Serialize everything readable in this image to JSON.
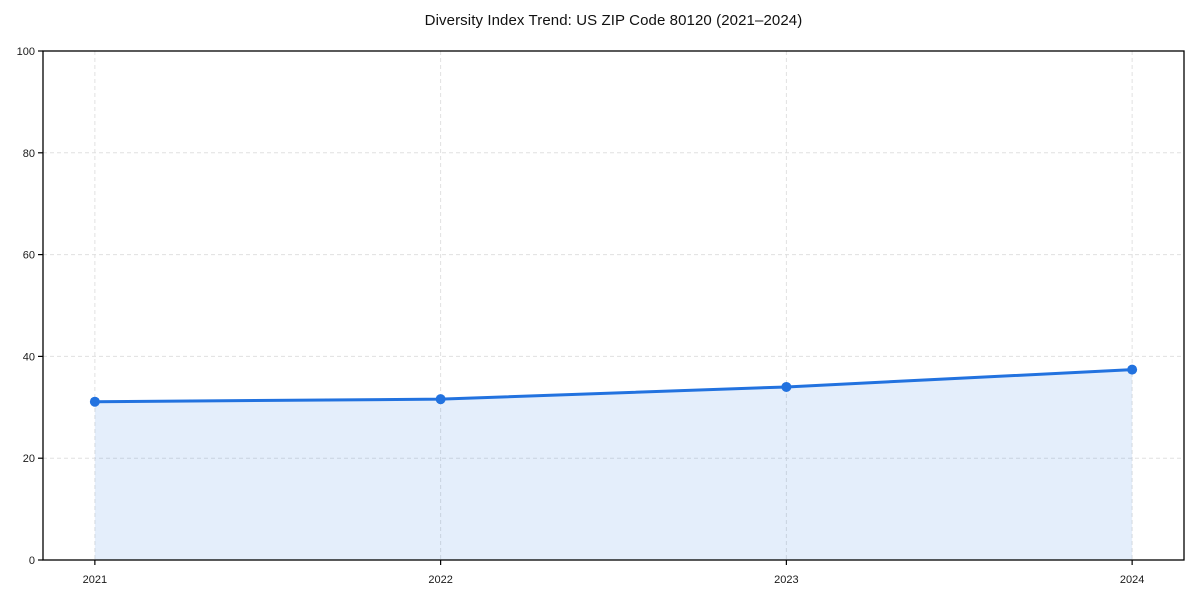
{
  "chart_data": {
    "type": "area",
    "title": "Diversity Index Trend: US ZIP Code 80120 (2021–2024)",
    "x": [
      2021,
      2022,
      2023,
      2024
    ],
    "values": [
      31.1,
      31.6,
      34.0,
      37.4
    ],
    "series_name": "Diversity Index",
    "xlabel": "",
    "ylabel": "",
    "xticks": [
      2021,
      2022,
      2023,
      2024
    ],
    "yticks": [
      0,
      20,
      40,
      60,
      80,
      100
    ],
    "xlim": [
      2020.85,
      2024.15
    ],
    "ylim": [
      0,
      100
    ],
    "grid": true,
    "legend": "none",
    "colors": {
      "line": "#2272df",
      "marker": "#2272df",
      "fill": "#2272df",
      "fill_opacity": 0.12,
      "grid": "#e0e0e0",
      "frame": "#000000",
      "tick_label": "#1a1a1a"
    }
  }
}
